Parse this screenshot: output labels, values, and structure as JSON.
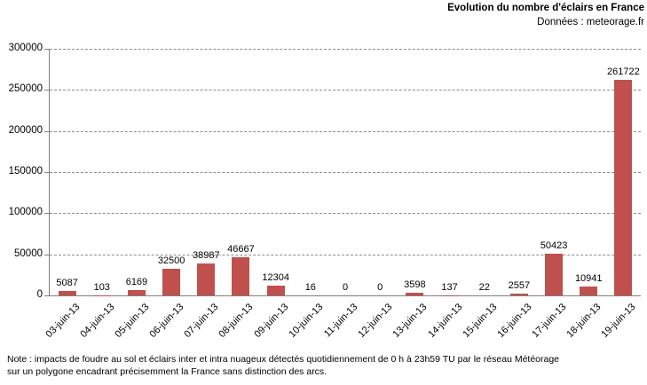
{
  "header": {
    "title": "Evolution du nombre d'éclairs en France",
    "subtitle": "Données : meteorage.fr"
  },
  "chart_data": {
    "type": "bar",
    "title": "Evolution du nombre d'éclairs en France",
    "subtitle": "Données : meteorage.fr",
    "categories": [
      "03-juin-13",
      "04-juin-13",
      "05-juin-13",
      "06-juin-13",
      "07-juin-13",
      "08-juin-13",
      "09-juin-13",
      "10-juin-13",
      "11-juin-13",
      "12-juin-13",
      "13-juin-13",
      "14-juin-13",
      "15-juin-13",
      "16-juin-13",
      "17-juin-13",
      "18-juin-13",
      "19-juin-13"
    ],
    "values": [
      5087,
      103,
      6169,
      32500,
      38987,
      46667,
      12304,
      16,
      0,
      0,
      3598,
      137,
      22,
      2557,
      50423,
      10941,
      261722
    ],
    "xlabel": "",
    "ylabel": "",
    "ylim": [
      0,
      300000
    ],
    "yticks": [
      0,
      50000,
      100000,
      150000,
      200000,
      250000,
      300000
    ],
    "grid": "horizontal-dashed",
    "legend": "none",
    "data_labels": true,
    "bar_color": "#C0504D"
  },
  "colors": {
    "bar": "#C0504D",
    "axis": "#808080",
    "grid": "#8c8c8c",
    "text": "#000000"
  },
  "footnote": {
    "line1": "Note : impacts de foudre au sol et éclairs inter et intra nuageux détectés quotidiennement de 0 h à 23h59 TU par le réseau Météorage",
    "line2": "sur un polygone encadrant précisemment la France sans distinction des arcs."
  }
}
